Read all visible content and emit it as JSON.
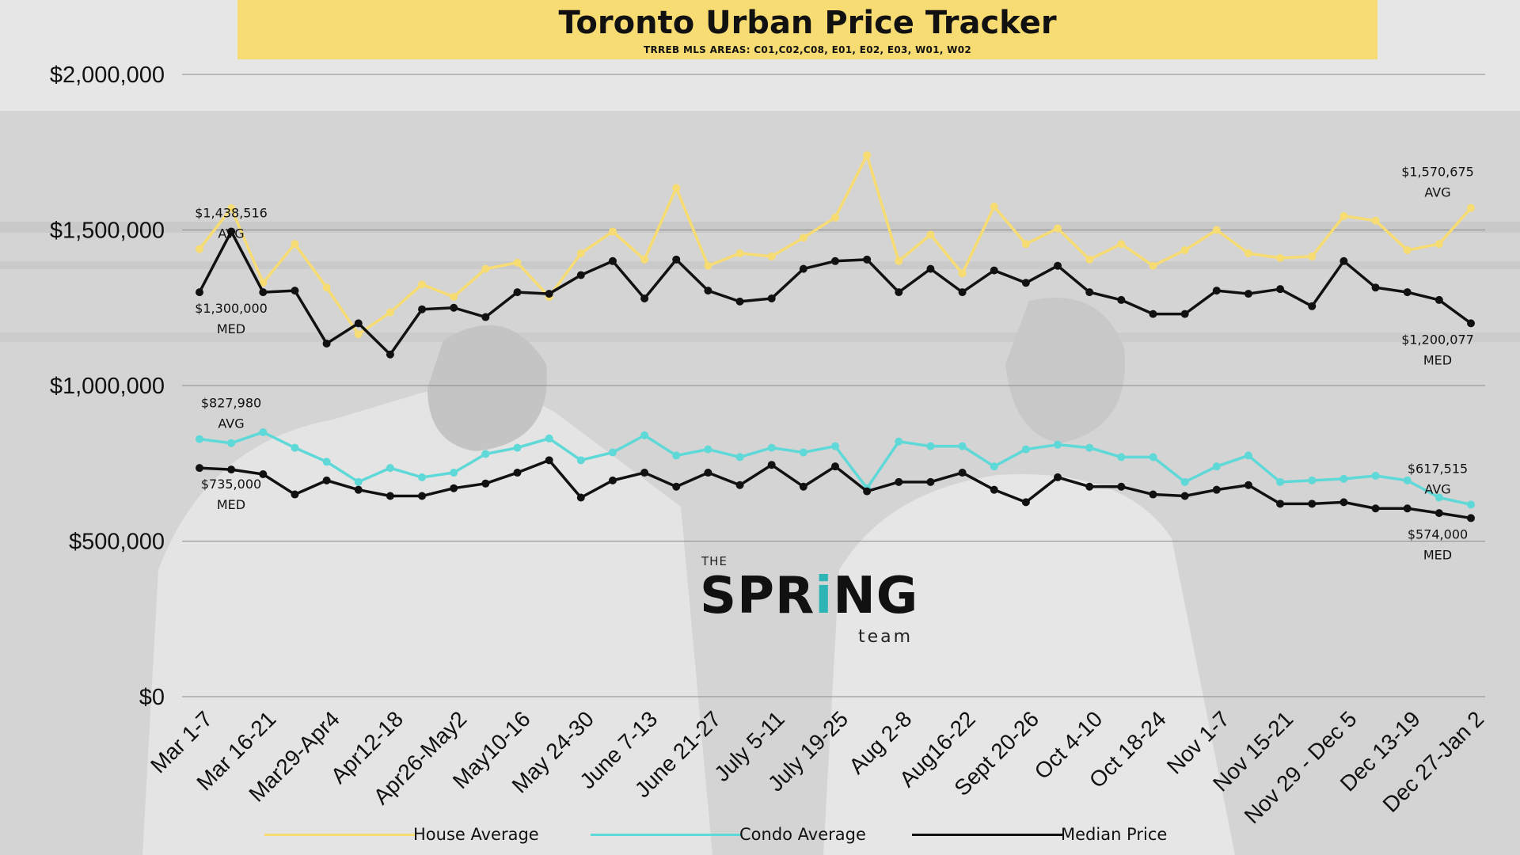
{
  "title": "Toronto Urban Price Tracker",
  "subtitle": "TRREB MLS AREAS: C01,C02,C08, E01, E02, E03, W01, W02",
  "logo": {
    "the": "THE",
    "main_pre": "SPR",
    "main_accent": "i",
    "main_post": "NG",
    "team": "team"
  },
  "colors": {
    "house": "#f7dc73",
    "condo": "#5fd8d8",
    "median": "#111111",
    "banner": "#f7dc73"
  },
  "legend": [
    {
      "label": "House Average",
      "color": "#f7dc73"
    },
    {
      "label": "Condo Average",
      "color": "#5fd8d8"
    },
    {
      "label": "Median Price",
      "color": "#111111"
    }
  ],
  "chart_data": {
    "type": "line",
    "title": "Toronto Urban Price Tracker",
    "subtitle": "TRREB MLS AREAS: C01,C02,C08, E01, E02, E03, W01, W02",
    "ylim": [
      0,
      2000000
    ],
    "y_ticks": [
      "$0",
      "$500,000",
      "$1,000,000",
      "$1,500,000",
      "$2,000,000"
    ],
    "y_tick_values": [
      0,
      500000,
      1000000,
      1500000,
      2000000
    ],
    "grid": true,
    "legend_position": "bottom",
    "x_tick_labels": [
      "Mar 1-7",
      "Mar 16-21",
      "Mar29-Apr4",
      "Apr12-18",
      "Apr26-May2",
      "May10-16",
      "May 24-30",
      "June 7-13",
      "June 21-27",
      "July 5-11",
      "July 19-25",
      "Aug 2-8",
      "Aug16-22",
      "Sept 20-26",
      "Oct 4-10",
      "Oct 18-24",
      "Nov 1-7",
      "Nov 15-21",
      "Nov 29 - Dec 5",
      "Dec 13-19",
      "Dec 27-Jan 2"
    ],
    "x_tick_indices": [
      0,
      2,
      4,
      6,
      8,
      10,
      12,
      14,
      16,
      18,
      20,
      22,
      24,
      26,
      28,
      30,
      32,
      34,
      36,
      38,
      40
    ],
    "series": [
      {
        "name": "House Average",
        "color": "#f7dc73",
        "values": [
          1438516,
          1570000,
          1330000,
          1455000,
          1315000,
          1165000,
          1235000,
          1325000,
          1285000,
          1375000,
          1395000,
          1285000,
          1425000,
          1495000,
          1405000,
          1635000,
          1385000,
          1425000,
          1415000,
          1475000,
          1540000,
          1740000,
          1400000,
          1485000,
          1360000,
          1575000,
          1455000,
          1505000,
          1405000,
          1455000,
          1385000,
          1435000,
          1500000,
          1425000,
          1410000,
          1415000,
          1545000,
          1530000,
          1435000,
          1455000,
          1570675
        ]
      },
      {
        "name": "Condo Average",
        "color": "#5fd8d8",
        "values": [
          827980,
          815000,
          850000,
          800000,
          755000,
          690000,
          735000,
          705000,
          720000,
          780000,
          800000,
          830000,
          760000,
          785000,
          840000,
          775000,
          795000,
          770000,
          800000,
          785000,
          805000,
          670000,
          820000,
          805000,
          805000,
          740000,
          795000,
          810000,
          800000,
          770000,
          770000,
          690000,
          740000,
          775000,
          690000,
          695000,
          700000,
          710000,
          695000,
          640000,
          617515
        ]
      },
      {
        "name": "Median Price",
        "color": "#111111",
        "values": [
          1300000,
          1495000,
          1300000,
          1305000,
          1135000,
          1200000,
          1100000,
          1245000,
          1250000,
          1220000,
          1300000,
          1295000,
          1355000,
          1400000,
          1280000,
          1405000,
          1305000,
          1270000,
          1280000,
          1375000,
          1400000,
          1405000,
          1300000,
          1375000,
          1300000,
          1370000,
          1330000,
          1385000,
          1300000,
          1275000,
          1230000,
          1230000,
          1305000,
          1295000,
          1310000,
          1255000,
          1400000,
          1315000,
          1300000,
          1275000,
          1200077
        ]
      },
      {
        "name": "Median Price (Condo)",
        "color": "#111111",
        "legend": false,
        "values": [
          735000,
          730000,
          715000,
          650000,
          695000,
          665000,
          645000,
          645000,
          670000,
          685000,
          720000,
          760000,
          640000,
          695000,
          720000,
          675000,
          720000,
          680000,
          745000,
          675000,
          740000,
          660000,
          690000,
          690000,
          720000,
          665000,
          625000,
          705000,
          675000,
          675000,
          650000,
          645000,
          665000,
          680000,
          620000,
          620000,
          625000,
          605000,
          605000,
          590000,
          574000
        ]
      }
    ],
    "annotations": [
      {
        "series": 0,
        "index": 0,
        "value": "$1,438,516",
        "label": "AVG",
        "place": "above"
      },
      {
        "series": 0,
        "index": 40,
        "value": "$1,570,675",
        "label": "AVG",
        "place": "above"
      },
      {
        "series": 2,
        "index": 0,
        "value": "$1,300,000",
        "label": "MED",
        "place": "below"
      },
      {
        "series": 2,
        "index": 40,
        "value": "$1,200,077",
        "label": "MED",
        "place": "below"
      },
      {
        "series": 1,
        "index": 0,
        "value": "$827,980",
        "label": "AVG",
        "place": "above"
      },
      {
        "series": 1,
        "index": 40,
        "value": "$617,515",
        "label": "AVG",
        "place": "above"
      },
      {
        "series": 3,
        "index": 0,
        "value": "$735,000",
        "label": "MED",
        "place": "below"
      },
      {
        "series": 3,
        "index": 40,
        "value": "$574,000",
        "label": "MED",
        "place": "below"
      }
    ]
  }
}
